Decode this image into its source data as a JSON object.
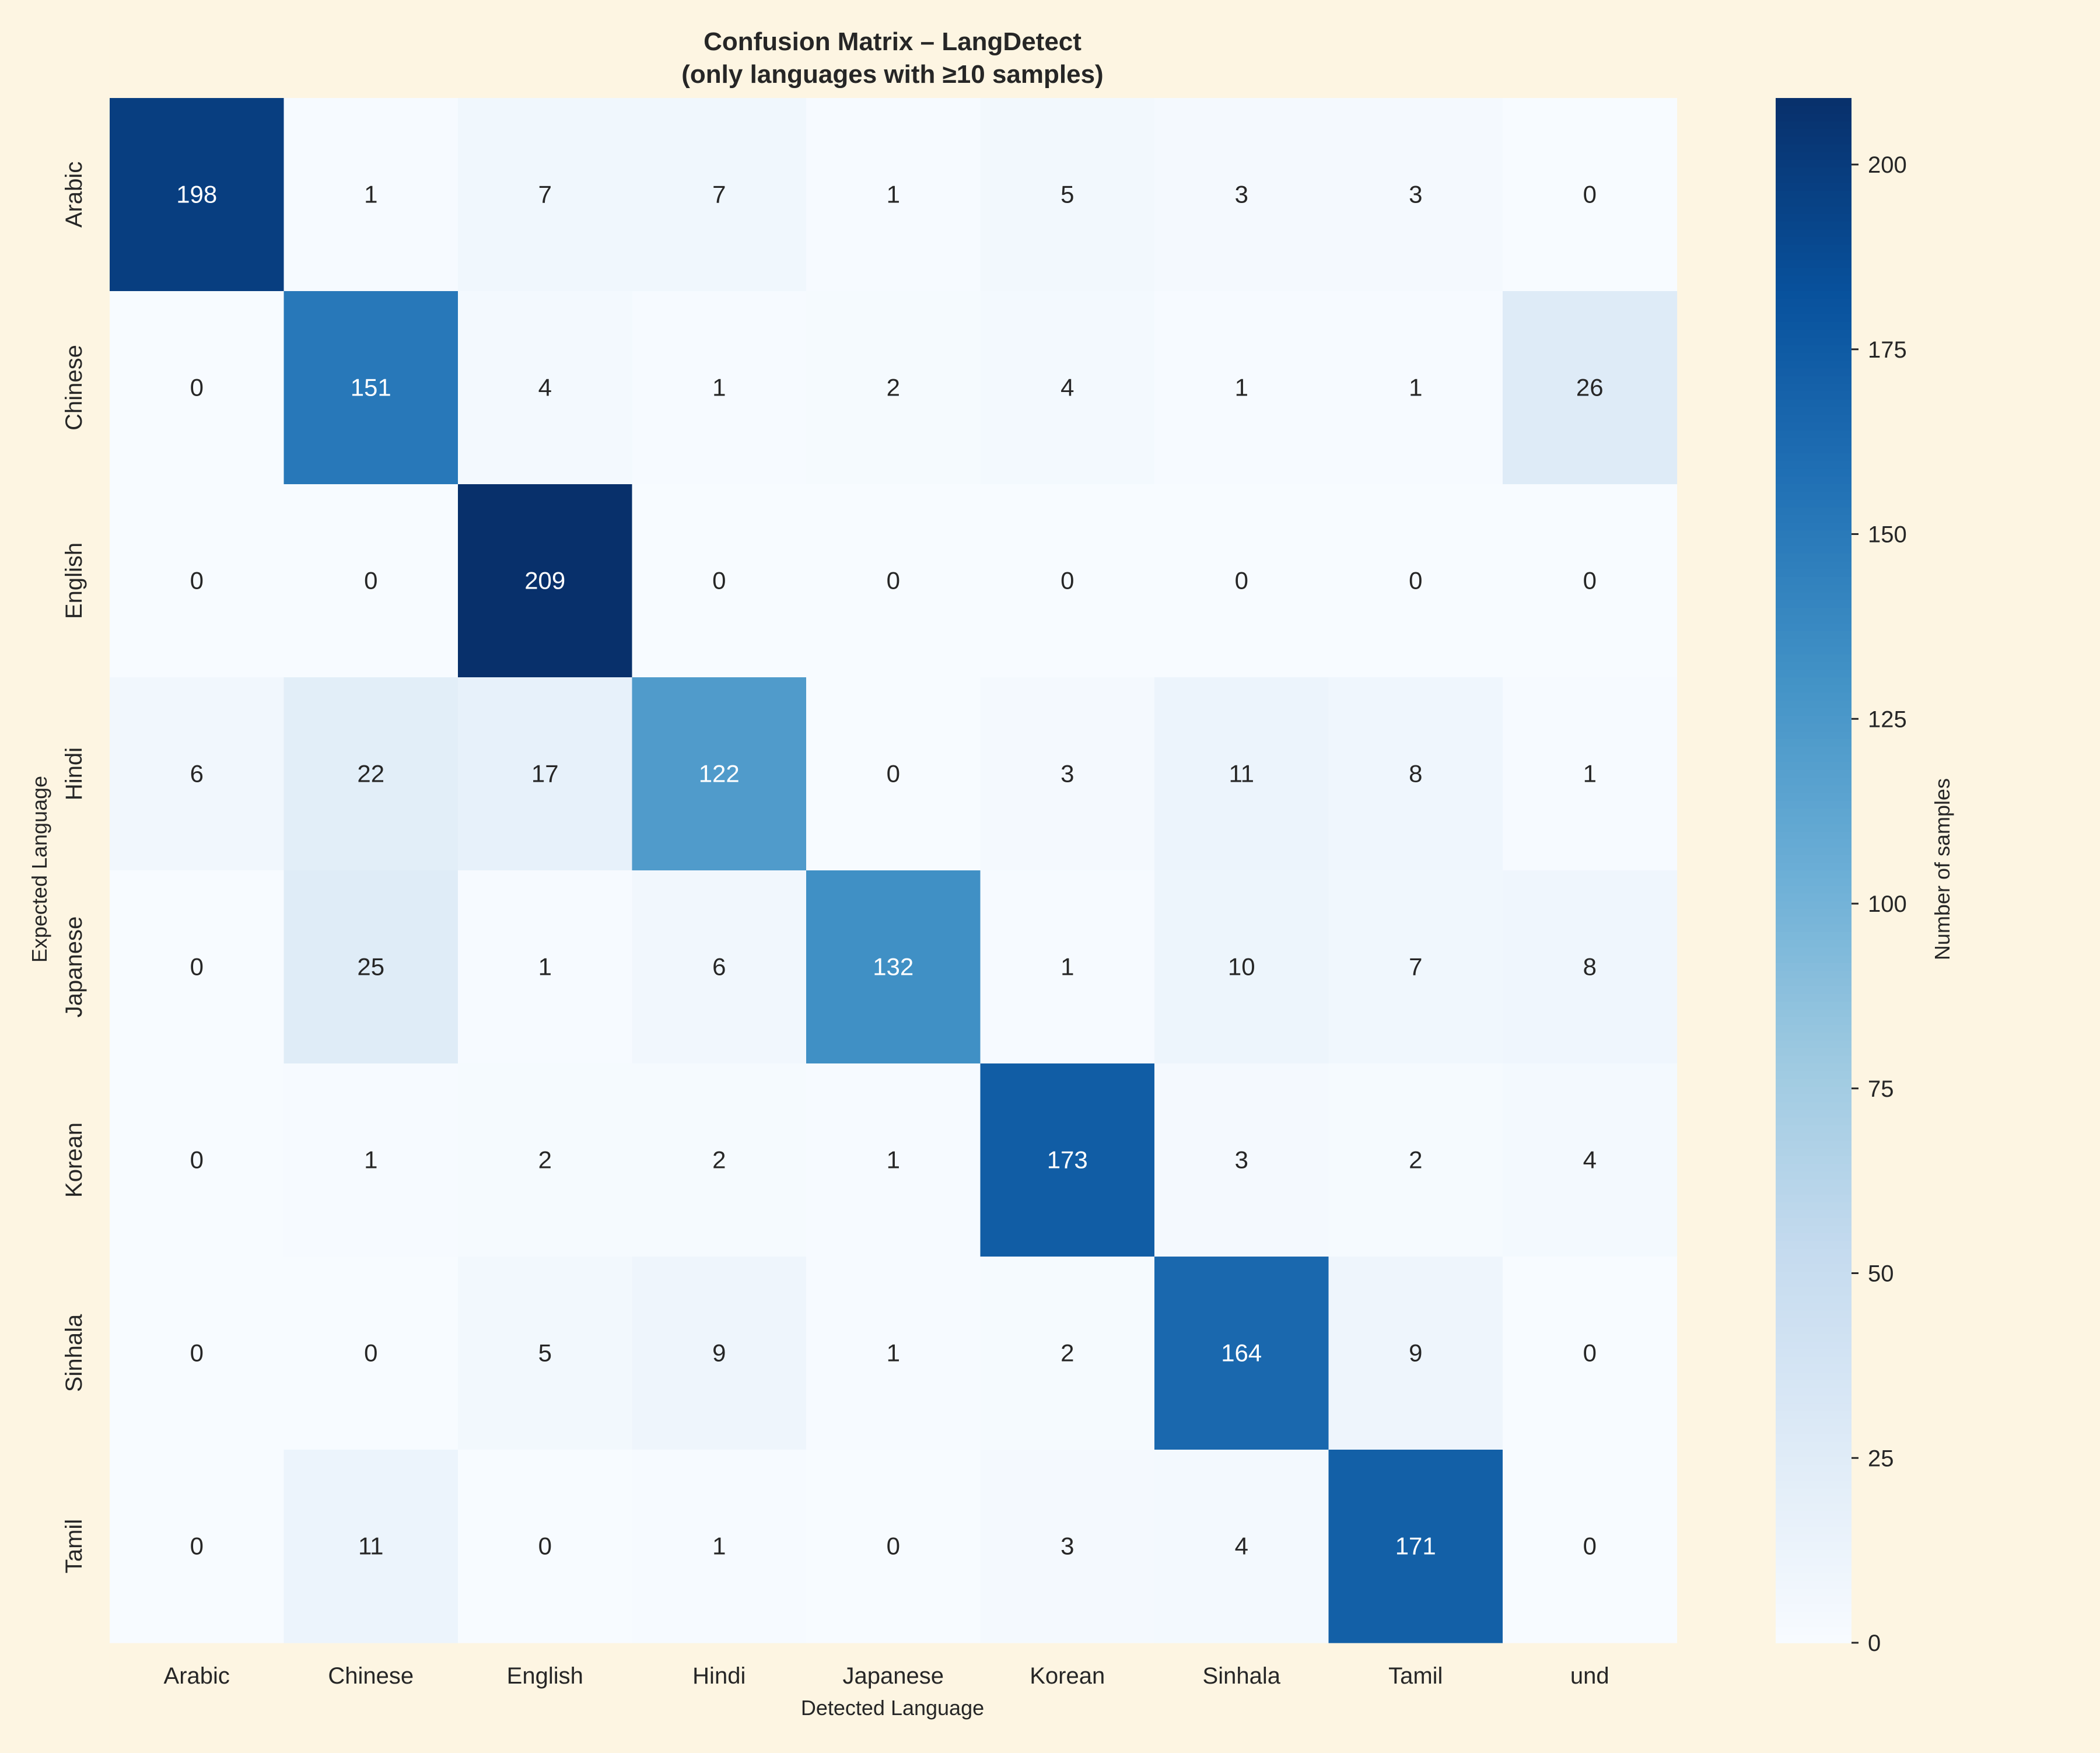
{
  "chart_data": {
    "type": "heatmap",
    "title": "Confusion Matrix – LangDetect",
    "subtitle": "(only languages with ≥10 samples)",
    "xlabel": "Detected Language",
    "ylabel": "Expected Language",
    "x_categories": [
      "Arabic",
      "Chinese",
      "English",
      "Hindi",
      "Japanese",
      "Korean",
      "Sinhala",
      "Tamil",
      "und"
    ],
    "y_categories": [
      "Arabic",
      "Chinese",
      "English",
      "Hindi",
      "Japanese",
      "Korean",
      "Sinhala",
      "Tamil"
    ],
    "values": [
      [
        198,
        1,
        7,
        7,
        1,
        5,
        3,
        3,
        0
      ],
      [
        0,
        151,
        4,
        1,
        2,
        4,
        1,
        1,
        26
      ],
      [
        0,
        0,
        209,
        0,
        0,
        0,
        0,
        0,
        0
      ],
      [
        6,
        22,
        17,
        122,
        0,
        3,
        11,
        8,
        1
      ],
      [
        0,
        25,
        1,
        6,
        132,
        1,
        10,
        7,
        8
      ],
      [
        0,
        1,
        2,
        2,
        1,
        173,
        3,
        2,
        4
      ],
      [
        0,
        0,
        5,
        9,
        1,
        2,
        164,
        9,
        0
      ],
      [
        0,
        11,
        0,
        1,
        0,
        3,
        4,
        171,
        0
      ]
    ],
    "colorbar": {
      "label": "Number of samples",
      "range": [
        0,
        209
      ],
      "ticks": [
        0,
        25,
        50,
        75,
        100,
        125,
        150,
        175,
        200
      ],
      "colormap": "Blues"
    },
    "colors": {
      "background": "#fdf5e2",
      "text_dark": "#262626",
      "text_light": "#ffffff"
    }
  }
}
